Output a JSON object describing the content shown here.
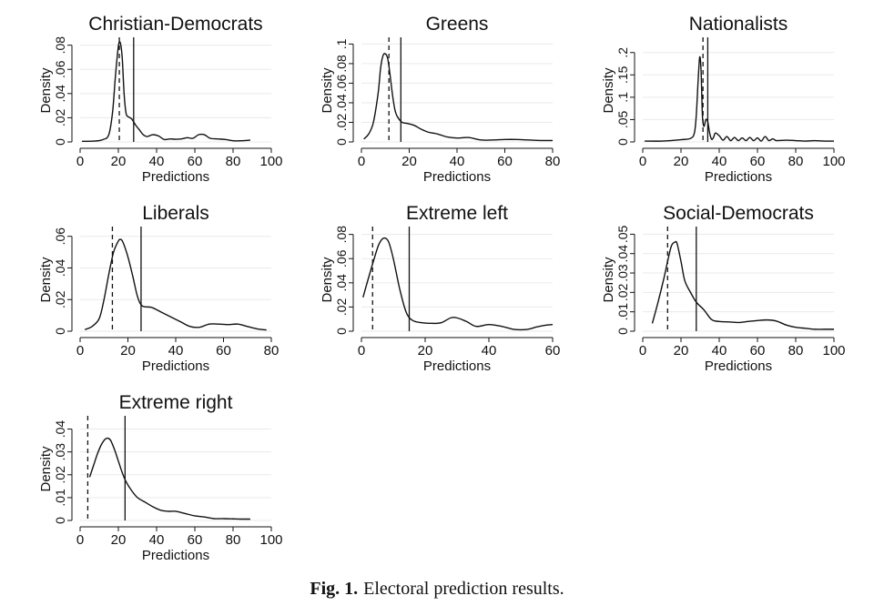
{
  "figure": {
    "label": "Fig. 1.",
    "caption": "Electoral prediction results."
  },
  "chart_data": [
    {
      "type": "area",
      "title": "Christian-Democrats",
      "xlabel": "Predictions",
      "ylabel": "Density",
      "xlim": [
        0,
        100
      ],
      "xticks": [
        0,
        20,
        40,
        60,
        80,
        100
      ],
      "ylim": [
        0,
        0.085
      ],
      "yticks": [
        0,
        0.02,
        0.04,
        0.06,
        0.08
      ],
      "ytick_labels": [
        "0",
        ".02",
        ".04",
        ".06",
        ".08"
      ],
      "grid": true,
      "dashed_line_x": 20.5,
      "solid_line_x": 28,
      "x": [
        1,
        8,
        12,
        15,
        17,
        18.5,
        20,
        21,
        22,
        23,
        24,
        25,
        27,
        29,
        31,
        33,
        35,
        38,
        41,
        44,
        47,
        50,
        53,
        56,
        59,
        62,
        65,
        68,
        72,
        76,
        80,
        84,
        89
      ],
      "y": [
        0.0005,
        0.0008,
        0.002,
        0.006,
        0.025,
        0.055,
        0.079,
        0.082,
        0.07,
        0.04,
        0.024,
        0.021,
        0.019,
        0.014,
        0.01,
        0.006,
        0.0045,
        0.006,
        0.005,
        0.002,
        0.0025,
        0.0022,
        0.0025,
        0.0035,
        0.003,
        0.006,
        0.006,
        0.003,
        0.0025,
        0.002,
        0.001,
        0.001,
        0.0015
      ]
    },
    {
      "type": "area",
      "title": "Greens",
      "xlabel": "Predictions",
      "ylabel": "Density",
      "xlim": [
        0,
        80
      ],
      "xticks": [
        0,
        20,
        40,
        60,
        80
      ],
      "ylim": [
        0,
        0.105
      ],
      "yticks": [
        0,
        0.02,
        0.04,
        0.06,
        0.08,
        0.1
      ],
      "ytick_labels": [
        "0",
        ".02",
        ".04",
        ".06",
        ".08",
        ".1"
      ],
      "grid": true,
      "dashed_line_x": 11.5,
      "solid_line_x": 16.5,
      "x": [
        1,
        3,
        5,
        7,
        8,
        9,
        10,
        11,
        12,
        13,
        14,
        15,
        17,
        19,
        22,
        25,
        28,
        32,
        36,
        40,
        45,
        50,
        55,
        60,
        65,
        70,
        75,
        80
      ],
      "y": [
        0.003,
        0.008,
        0.02,
        0.05,
        0.075,
        0.088,
        0.09,
        0.085,
        0.068,
        0.048,
        0.033,
        0.026,
        0.02,
        0.019,
        0.017,
        0.013,
        0.01,
        0.008,
        0.005,
        0.004,
        0.0045,
        0.002,
        0.002,
        0.0025,
        0.0025,
        0.002,
        0.0015,
        0.0015
      ]
    },
    {
      "type": "area",
      "title": "Nationalists",
      "xlabel": "Predictions",
      "ylabel": "Density",
      "xlim": [
        0,
        100
      ],
      "xticks": [
        0,
        20,
        40,
        60,
        80,
        100
      ],
      "ylim": [
        0,
        0.23
      ],
      "yticks": [
        0,
        0.05,
        0.1,
        0.15,
        0.2
      ],
      "ytick_labels": [
        "0",
        ".05",
        ".1",
        ".15",
        ".2"
      ],
      "grid": true,
      "dashed_line_x": 31.5,
      "solid_line_x": 34,
      "x": [
        1,
        10,
        20,
        25,
        27,
        28,
        29,
        29.8,
        30.5,
        31.2,
        32,
        33,
        34,
        35,
        36,
        37,
        38,
        40,
        42,
        44,
        46,
        48,
        50,
        52,
        54,
        56,
        58,
        60,
        62,
        64,
        66,
        68,
        70,
        75,
        80,
        85,
        90,
        95,
        100
      ],
      "y": [
        0.002,
        0.002,
        0.005,
        0.008,
        0.02,
        0.06,
        0.14,
        0.19,
        0.16,
        0.06,
        0.035,
        0.05,
        0.045,
        0.02,
        0.006,
        0.01,
        0.02,
        0.014,
        0.004,
        0.012,
        0.003,
        0.01,
        0.003,
        0.009,
        0.003,
        0.01,
        0.003,
        0.009,
        0.002,
        0.012,
        0.003,
        0.007,
        0.003,
        0.004,
        0.003,
        0.002,
        0.003,
        0.002,
        0.002
      ]
    },
    {
      "type": "area",
      "title": "Liberals",
      "xlabel": "Predictions",
      "ylabel": "Density",
      "xlim": [
        0,
        80
      ],
      "xticks": [
        0,
        20,
        40,
        60,
        80
      ],
      "ylim": [
        0,
        0.065
      ],
      "yticks": [
        0,
        0.02,
        0.04,
        0.06
      ],
      "ytick_labels": [
        "0",
        ".02",
        ".04",
        ".06"
      ],
      "grid": true,
      "dashed_line_x": 13.5,
      "solid_line_x": 25.5,
      "x": [
        2,
        5,
        8,
        10,
        12,
        14,
        16,
        17,
        18,
        20,
        22,
        24,
        26,
        30,
        34,
        38,
        42,
        46,
        50,
        54,
        58,
        62,
        66,
        70,
        74,
        78
      ],
      "y": [
        0.001,
        0.003,
        0.008,
        0.02,
        0.036,
        0.05,
        0.057,
        0.058,
        0.056,
        0.047,
        0.035,
        0.022,
        0.016,
        0.015,
        0.012,
        0.009,
        0.006,
        0.003,
        0.0025,
        0.0045,
        0.0045,
        0.0042,
        0.0045,
        0.003,
        0.0015,
        0.0008
      ]
    },
    {
      "type": "area",
      "title": "Extreme left",
      "xlabel": "Predictions",
      "ylabel": "Density",
      "xlim": [
        0,
        60
      ],
      "xticks": [
        0,
        20,
        40,
        60
      ],
      "ylim": [
        0,
        0.085
      ],
      "yticks": [
        0,
        0.02,
        0.04,
        0.06,
        0.08
      ],
      "ytick_labels": [
        "0",
        ".02",
        ".04",
        ".06",
        ".08"
      ],
      "grid": true,
      "dashed_line_x": 3.5,
      "solid_line_x": 15,
      "x": [
        0.5,
        2,
        4,
        5.5,
        7,
        8.5,
        10,
        12,
        14,
        16,
        19,
        22,
        25,
        28,
        30,
        33,
        36,
        40,
        44,
        48,
        52,
        55,
        58,
        60
      ],
      "y": [
        0.028,
        0.042,
        0.06,
        0.072,
        0.077,
        0.074,
        0.06,
        0.035,
        0.016,
        0.009,
        0.007,
        0.0065,
        0.007,
        0.011,
        0.011,
        0.008,
        0.004,
        0.0055,
        0.004,
        0.0015,
        0.0015,
        0.0035,
        0.005,
        0.0055
      ]
    },
    {
      "type": "area",
      "title": "Social-Democrats",
      "xlabel": "Predictions",
      "ylabel": "Density",
      "xlim": [
        0,
        100
      ],
      "xticks": [
        0,
        20,
        40,
        60,
        80,
        100
      ],
      "ylim": [
        0,
        0.053
      ],
      "yticks": [
        0,
        0.01,
        0.02,
        0.03,
        0.04,
        0.05
      ],
      "ytick_labels": [
        "0",
        ".01",
        ".02",
        ".03",
        ".04",
        ".05"
      ],
      "grid": true,
      "dashed_line_x": 13,
      "solid_line_x": 28,
      "x": [
        5,
        8,
        11,
        13,
        15,
        17,
        18,
        20,
        22,
        25,
        28,
        32,
        36,
        40,
        45,
        50,
        55,
        60,
        65,
        70,
        75,
        80,
        85,
        90,
        95,
        100
      ],
      "y": [
        0.004,
        0.015,
        0.027,
        0.036,
        0.044,
        0.046,
        0.045,
        0.036,
        0.026,
        0.02,
        0.015,
        0.011,
        0.006,
        0.005,
        0.0048,
        0.0045,
        0.005,
        0.0055,
        0.0058,
        0.0052,
        0.0032,
        0.002,
        0.0015,
        0.001,
        0.001,
        0.001
      ]
    },
    {
      "type": "area",
      "title": "Extreme right",
      "xlabel": "Predictions",
      "ylabel": "Density",
      "xlim": [
        0,
        100
      ],
      "xticks": [
        0,
        20,
        40,
        60,
        80,
        100
      ],
      "ylim": [
        0,
        0.045
      ],
      "yticks": [
        0,
        0.01,
        0.02,
        0.03,
        0.04
      ],
      "ytick_labels": [
        "0",
        ".01",
        ".02",
        ".03",
        ".04"
      ],
      "grid": true,
      "dashed_line_x": 4,
      "solid_line_x": 23.5,
      "x": [
        5,
        7,
        9,
        11,
        13,
        14.5,
        16,
        18,
        20,
        22,
        24,
        27,
        30,
        34,
        38,
        42,
        46,
        50,
        55,
        60,
        65,
        70,
        75,
        80,
        85,
        89
      ],
      "y": [
        0.019,
        0.024,
        0.029,
        0.033,
        0.0355,
        0.036,
        0.035,
        0.031,
        0.026,
        0.021,
        0.017,
        0.013,
        0.01,
        0.008,
        0.006,
        0.0045,
        0.004,
        0.004,
        0.003,
        0.002,
        0.0015,
        0.0008,
        0.0008,
        0.0007,
        0.0006,
        0.0006
      ]
    }
  ]
}
